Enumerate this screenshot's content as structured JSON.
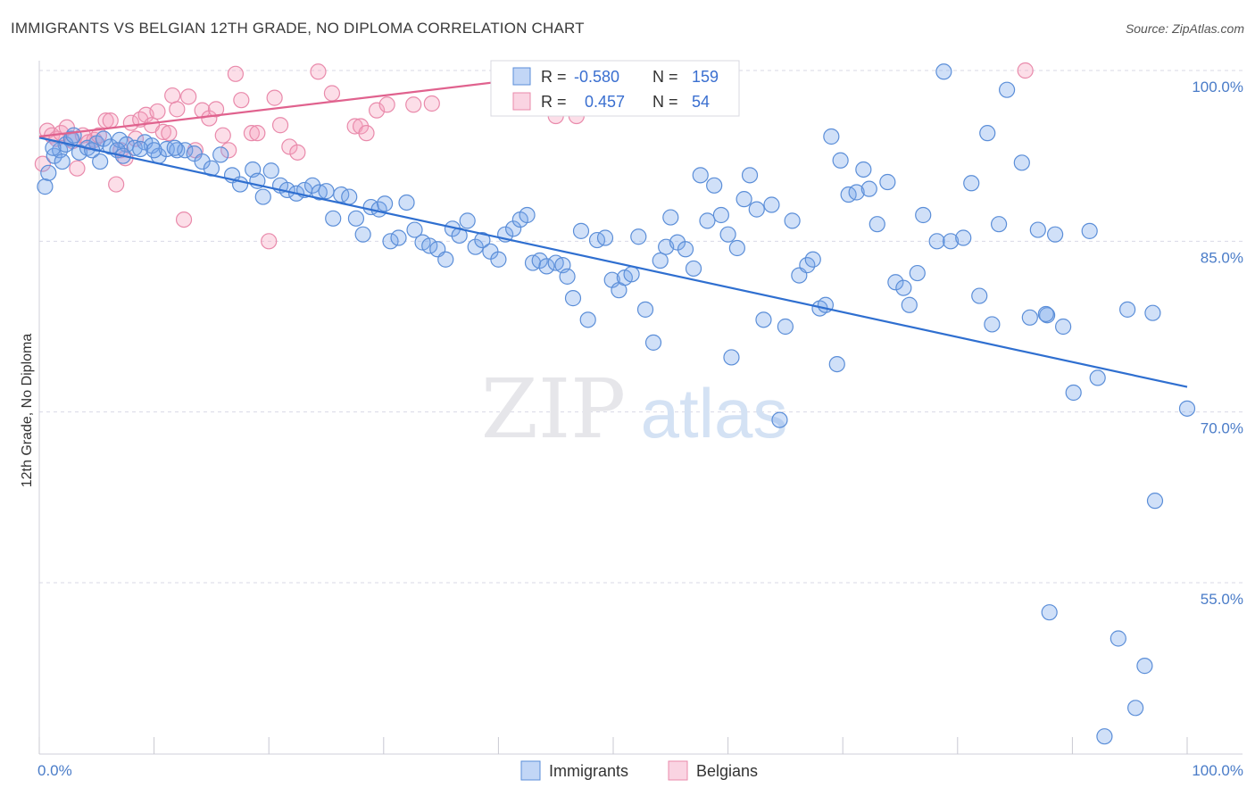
{
  "title": "IMMIGRANTS VS BELGIAN 12TH GRADE, NO DIPLOMA CORRELATION CHART",
  "source": "Source: ZipAtlas.com",
  "watermark": {
    "zip": "ZIP",
    "atlas": "atlas"
  },
  "colors": {
    "immigrants_fill": "rgba(120,165,235,0.35)",
    "immigrants_stroke": "#5b8ed8",
    "immigrants_line": "#2f6fd0",
    "belgians_fill": "rgba(245,160,190,0.35)",
    "belgians_stroke": "#e98aab",
    "belgians_line": "#e0628e",
    "grid": "#d9d9e6",
    "tick_text": "#4a7cc8"
  },
  "legend": {
    "r_label": "R =",
    "n_label": "N =",
    "immigrants_r": "-0.580",
    "immigrants_n": "159",
    "belgians_r": "0.457",
    "belgians_n": "54"
  },
  "chart_data": {
    "type": "scatter",
    "title": "IMMIGRANTS VS BELGIAN 12TH GRADE, NO DIPLOMA CORRELATION CHART",
    "xlabel": "",
    "ylabel": "12th Grade, No Diploma",
    "xlim": [
      0,
      100
    ],
    "ylim": [
      40.5,
      101.5
    ],
    "x_tick_labels": [
      "0.0%",
      "100.0%"
    ],
    "y_ticks": [
      100,
      85,
      70,
      55
    ],
    "y_tick_labels": [
      "100.0%",
      "85.0%",
      "70.0%",
      "55.0%"
    ],
    "grid": true,
    "legend_position": "top-center",
    "series": [
      {
        "name": "Immigrants",
        "trend": {
          "x": [
            0,
            100
          ],
          "y": [
            94.1,
            72.2
          ]
        },
        "points": [
          [
            0.5,
            89.8
          ],
          [
            0.8,
            91.0
          ],
          [
            1.3,
            92.5
          ],
          [
            1.8,
            93.0
          ],
          [
            2.3,
            93.5
          ],
          [
            2.8,
            94.0
          ],
          [
            3.5,
            92.8
          ],
          [
            4.2,
            93.2
          ],
          [
            5.0,
            93.6
          ],
          [
            5.6,
            94.0
          ],
          [
            6.2,
            93.3
          ],
          [
            7.0,
            93.9
          ],
          [
            7.6,
            93.5
          ],
          [
            8.3,
            93.2
          ],
          [
            9.2,
            93.7
          ],
          [
            9.8,
            93.4
          ],
          [
            10.4,
            92.5
          ],
          [
            11.1,
            93.1
          ],
          [
            12.0,
            93.0
          ],
          [
            12.7,
            93.0
          ],
          [
            1.2,
            93.2
          ],
          [
            2.0,
            92.0
          ],
          [
            3.0,
            94.3
          ],
          [
            4.6,
            93.0
          ],
          [
            5.3,
            92.0
          ],
          [
            6.8,
            93.0
          ],
          [
            7.3,
            92.5
          ],
          [
            8.8,
            93.1
          ],
          [
            10.0,
            93.0
          ],
          [
            11.8,
            93.2
          ],
          [
            13.5,
            92.7
          ],
          [
            14.2,
            92.0
          ],
          [
            15.0,
            91.4
          ],
          [
            15.8,
            92.6
          ],
          [
            16.8,
            90.8
          ],
          [
            17.5,
            90.0
          ],
          [
            18.6,
            91.3
          ],
          [
            19.0,
            90.3
          ],
          [
            19.5,
            88.9
          ],
          [
            20.2,
            91.2
          ],
          [
            21.0,
            89.9
          ],
          [
            21.6,
            89.5
          ],
          [
            22.4,
            89.2
          ],
          [
            23.1,
            89.5
          ],
          [
            23.8,
            89.9
          ],
          [
            24.4,
            89.3
          ],
          [
            25.0,
            89.4
          ],
          [
            25.6,
            87.0
          ],
          [
            26.3,
            89.1
          ],
          [
            27.0,
            88.9
          ],
          [
            27.6,
            87.0
          ],
          [
            28.2,
            85.6
          ],
          [
            28.9,
            88.0
          ],
          [
            29.6,
            87.8
          ],
          [
            30.1,
            88.3
          ],
          [
            30.6,
            85.0
          ],
          [
            31.3,
            85.3
          ],
          [
            32.0,
            88.4
          ],
          [
            32.7,
            86.0
          ],
          [
            33.4,
            84.9
          ],
          [
            34.0,
            84.6
          ],
          [
            34.7,
            84.3
          ],
          [
            35.4,
            83.4
          ],
          [
            36.0,
            86.1
          ],
          [
            36.6,
            85.5
          ],
          [
            37.3,
            86.8
          ],
          [
            38.0,
            84.5
          ],
          [
            38.6,
            85.1
          ],
          [
            39.3,
            84.1
          ],
          [
            40.0,
            83.4
          ],
          [
            40.6,
            85.6
          ],
          [
            41.3,
            86.1
          ],
          [
            41.9,
            86.9
          ],
          [
            42.5,
            87.3
          ],
          [
            43.0,
            83.1
          ],
          [
            43.6,
            83.3
          ],
          [
            44.2,
            82.8
          ],
          [
            45.0,
            83.1
          ],
          [
            45.6,
            82.9
          ],
          [
            46.0,
            81.9
          ],
          [
            46.5,
            80.0
          ],
          [
            47.2,
            85.9
          ],
          [
            47.8,
            78.1
          ],
          [
            48.6,
            85.1
          ],
          [
            49.3,
            85.3
          ],
          [
            49.9,
            81.6
          ],
          [
            50.5,
            80.7
          ],
          [
            51.0,
            81.8
          ],
          [
            51.6,
            82.1
          ],
          [
            52.2,
            85.4
          ],
          [
            52.8,
            79.0
          ],
          [
            53.5,
            76.1
          ],
          [
            54.1,
            83.3
          ],
          [
            54.6,
            84.5
          ],
          [
            55.0,
            87.1
          ],
          [
            55.6,
            84.9
          ],
          [
            56.3,
            84.3
          ],
          [
            57.0,
            82.6
          ],
          [
            57.6,
            90.8
          ],
          [
            58.2,
            86.8
          ],
          [
            58.8,
            89.9
          ],
          [
            59.4,
            87.3
          ],
          [
            60.0,
            85.6
          ],
          [
            60.3,
            74.8
          ],
          [
            60.8,
            84.4
          ],
          [
            61.4,
            88.7
          ],
          [
            61.9,
            90.8
          ],
          [
            62.5,
            87.8
          ],
          [
            63.1,
            78.1
          ],
          [
            63.8,
            88.2
          ],
          [
            64.5,
            69.3
          ],
          [
            65.0,
            77.5
          ],
          [
            65.6,
            86.8
          ],
          [
            66.2,
            82.0
          ],
          [
            66.9,
            82.9
          ],
          [
            67.4,
            83.4
          ],
          [
            68.0,
            79.1
          ],
          [
            68.5,
            79.4
          ],
          [
            69.0,
            94.2
          ],
          [
            69.5,
            74.2
          ],
          [
            69.8,
            92.1
          ],
          [
            70.5,
            89.1
          ],
          [
            71.2,
            89.3
          ],
          [
            71.8,
            91.3
          ],
          [
            72.3,
            89.6
          ],
          [
            73.0,
            86.5
          ],
          [
            73.9,
            90.2
          ],
          [
            74.6,
            81.4
          ],
          [
            75.3,
            80.9
          ],
          [
            75.8,
            79.4
          ],
          [
            76.5,
            82.2
          ],
          [
            77.0,
            87.3
          ],
          [
            78.2,
            85.0
          ],
          [
            78.8,
            99.9
          ],
          [
            79.4,
            85.0
          ],
          [
            80.5,
            85.3
          ],
          [
            81.2,
            90.1
          ],
          [
            81.9,
            80.2
          ],
          [
            82.6,
            94.5
          ],
          [
            83.0,
            77.7
          ],
          [
            83.6,
            86.5
          ],
          [
            84.3,
            98.3
          ],
          [
            85.6,
            91.9
          ],
          [
            86.3,
            78.3
          ],
          [
            87.0,
            86.0
          ],
          [
            87.8,
            78.5
          ],
          [
            88.5,
            85.6
          ],
          [
            89.2,
            77.5
          ],
          [
            90.1,
            71.7
          ],
          [
            91.5,
            85.9
          ],
          [
            92.2,
            73.0
          ],
          [
            94.0,
            50.1
          ],
          [
            95.5,
            44.0
          ],
          [
            96.3,
            47.7
          ],
          [
            97.0,
            78.7
          ],
          [
            100.0,
            70.3
          ],
          [
            87.7,
            78.6
          ],
          [
            92.8,
            41.5
          ],
          [
            88.0,
            52.4
          ],
          [
            97.2,
            62.2
          ],
          [
            94.8,
            79.0
          ]
        ]
      },
      {
        "name": "Belgians",
        "trend": {
          "x": [
            0,
            100
          ],
          "y": [
            94.2,
            106.2
          ]
        },
        "points": [
          [
            0.3,
            91.8
          ],
          [
            0.7,
            94.7
          ],
          [
            1.1,
            94.3
          ],
          [
            1.5,
            94.0
          ],
          [
            1.9,
            94.5
          ],
          [
            2.4,
            95.0
          ],
          [
            2.9,
            93.8
          ],
          [
            3.3,
            91.4
          ],
          [
            3.8,
            94.3
          ],
          [
            4.3,
            93.7
          ],
          [
            4.8,
            93.9
          ],
          [
            5.2,
            94.3
          ],
          [
            5.8,
            95.6
          ],
          [
            6.2,
            95.6
          ],
          [
            6.7,
            90.0
          ],
          [
            7.1,
            93.0
          ],
          [
            7.5,
            92.3
          ],
          [
            8.0,
            95.4
          ],
          [
            8.4,
            94.0
          ],
          [
            8.8,
            95.7
          ],
          [
            9.3,
            96.1
          ],
          [
            9.8,
            95.2
          ],
          [
            10.3,
            96.4
          ],
          [
            10.8,
            94.6
          ],
          [
            11.3,
            94.5
          ],
          [
            11.6,
            97.8
          ],
          [
            12.0,
            96.6
          ],
          [
            12.6,
            86.9
          ],
          [
            13.0,
            97.7
          ],
          [
            13.6,
            93.0
          ],
          [
            14.2,
            96.5
          ],
          [
            14.8,
            95.8
          ],
          [
            15.4,
            96.6
          ],
          [
            16.0,
            94.3
          ],
          [
            16.5,
            93.0
          ],
          [
            17.1,
            99.7
          ],
          [
            17.6,
            97.4
          ],
          [
            18.5,
            94.5
          ],
          [
            19.0,
            94.5
          ],
          [
            20.0,
            85.0
          ],
          [
            20.5,
            97.6
          ],
          [
            21.0,
            95.2
          ],
          [
            21.8,
            93.3
          ],
          [
            22.5,
            92.8
          ],
          [
            24.3,
            99.9
          ],
          [
            25.5,
            98.0
          ],
          [
            27.5,
            95.1
          ],
          [
            28.0,
            95.1
          ],
          [
            28.5,
            94.5
          ],
          [
            29.4,
            96.5
          ],
          [
            30.3,
            97.0
          ],
          [
            32.6,
            97.0
          ],
          [
            34.2,
            97.1
          ],
          [
            45.0,
            96.0
          ],
          [
            46.3,
            96.8
          ],
          [
            46.8,
            96.0
          ],
          [
            44.4,
            99.9
          ],
          [
            85.9,
            100.0
          ]
        ]
      }
    ]
  },
  "bottom_legend": {
    "immigrants": "Immigrants",
    "belgians": "Belgians"
  }
}
